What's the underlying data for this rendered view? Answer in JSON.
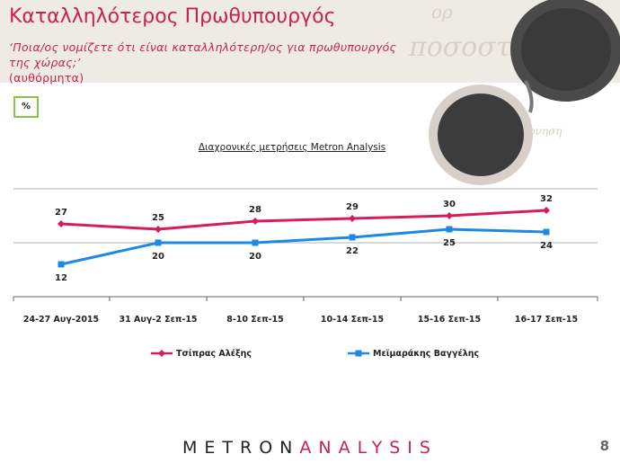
{
  "header": {
    "title": "Καταλληλότερος Πρωθυπουργός",
    "question": "‘Ποια/ος νομίζετε ότι είναι καταλληλότερη/ος για πρωθυπουργός της χώρας;’",
    "question_note": "(αυθόρμητα)"
  },
  "unit_badge": "%",
  "chart_data": {
    "type": "line",
    "title": "Διαχρονικές μετρήσεις Metron Analysis",
    "categories": [
      "24-27 Αυγ-2015",
      "31 Αυγ-2 Σεπ-15",
      "8-10 Σεπ-15",
      "10-14 Σεπ-15",
      "15-16 Σεπ-15",
      "16-17 Σεπ-15"
    ],
    "series": [
      {
        "name": "Τσίπρας Αλέξης",
        "values": [
          27,
          25,
          28,
          29,
          30,
          32
        ],
        "color": "#d81b60",
        "marker": "diamond"
      },
      {
        "name": "Μεϊμαράκης Βαγγέλης",
        "values": [
          12,
          20,
          20,
          22,
          25,
          24
        ],
        "color": "#1e88e5",
        "marker": "square"
      }
    ],
    "ylim": [
      0,
      40
    ],
    "gridlines": [
      20,
      40
    ],
    "legend": "bottom"
  },
  "footer": {
    "logo_left": "METRON",
    "logo_right": "ANALYSIS",
    "page_number": "8"
  }
}
